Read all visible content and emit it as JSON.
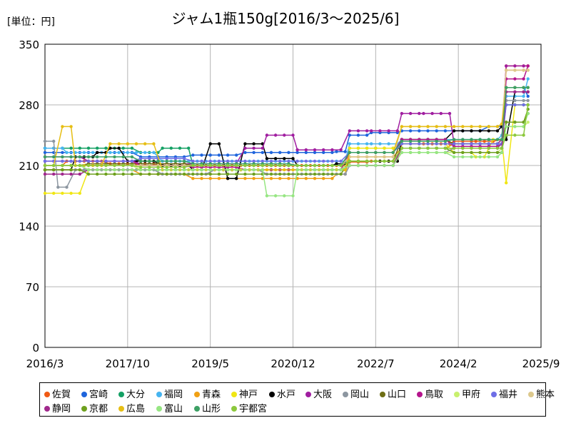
{
  "header": {
    "unit_label": "[単位：円]"
  },
  "chart_data": {
    "type": "line",
    "title": "ジャム1瓶150g[2016/3～2025/6]",
    "xlabel": "",
    "ylabel": "",
    "ylim": [
      0,
      350
    ],
    "yticks": [
      0,
      70,
      140,
      210,
      280,
      350
    ],
    "xlim": [
      "2016/3",
      "2025/9"
    ],
    "xticks": [
      "2016/3",
      "2017/10",
      "2019/5",
      "2020/12",
      "2022/7",
      "2024/2",
      "2025/9"
    ],
    "grid": true,
    "legend_position": "bottom",
    "series": [
      {
        "name": "佐賀",
        "color": "#f05a14",
        "points": [
          [
            "2016/3",
            210
          ],
          [
            "2016/8",
            215
          ],
          [
            "2017/6",
            212
          ],
          [
            "2018/6",
            210
          ],
          [
            "2019/6",
            210
          ],
          [
            "2020/6",
            210
          ],
          [
            "2021/6",
            210
          ],
          [
            "2022/1",
            214
          ],
          [
            "2022/6",
            215
          ],
          [
            "2023/1",
            235
          ],
          [
            "2023/6",
            235
          ],
          [
            "2024/1",
            238
          ],
          [
            "2024/6",
            238
          ],
          [
            "2024/12",
            240
          ],
          [
            "2025/1",
            325
          ],
          [
            "2025/6",
            325
          ]
        ]
      },
      {
        "name": "宮崎",
        "color": "#1e64dc",
        "points": [
          [
            "2016/3",
            225
          ],
          [
            "2017/1",
            225
          ],
          [
            "2018/1",
            220
          ],
          [
            "2019/1",
            222
          ],
          [
            "2020/1",
            225
          ],
          [
            "2021/1",
            225
          ],
          [
            "2021/10",
            226
          ],
          [
            "2022/1",
            245
          ],
          [
            "2022/6",
            248
          ],
          [
            "2023/1",
            250
          ],
          [
            "2024/1",
            250
          ],
          [
            "2024/9",
            255
          ],
          [
            "2024/12",
            255
          ],
          [
            "2025/1",
            300
          ],
          [
            "2025/6",
            290
          ]
        ]
      },
      {
        "name": "大分",
        "color": "#14a064",
        "points": [
          [
            "2016/3",
            230
          ],
          [
            "2017/1",
            230
          ],
          [
            "2018/1",
            225
          ],
          [
            "2018/6",
            230
          ],
          [
            "2019/1",
            210
          ],
          [
            "2020/1",
            210
          ],
          [
            "2021/1",
            210
          ],
          [
            "2021/10",
            212
          ],
          [
            "2022/1",
            230
          ],
          [
            "2023/1",
            230
          ],
          [
            "2024/1",
            235
          ],
          [
            "2024/12",
            240
          ],
          [
            "2025/1",
            280
          ],
          [
            "2025/6",
            280
          ]
        ]
      },
      {
        "name": "福岡",
        "color": "#46b4f0",
        "points": [
          [
            "2016/3",
            230
          ],
          [
            "2016/8",
            225
          ],
          [
            "2017/6",
            225
          ],
          [
            "2018/6",
            215
          ],
          [
            "2019/6",
            215
          ],
          [
            "2020/6",
            215
          ],
          [
            "2021/6",
            215
          ],
          [
            "2022/1",
            235
          ],
          [
            "2022/6",
            235
          ],
          [
            "2023/1",
            240
          ],
          [
            "2024/1",
            240
          ],
          [
            "2024/12",
            245
          ],
          [
            "2025/1",
            290
          ],
          [
            "2025/6",
            310
          ]
        ]
      },
      {
        "name": "青森",
        "color": "#f0a014",
        "points": [
          [
            "2016/3",
            205
          ],
          [
            "2017/1",
            205
          ],
          [
            "2018/1",
            200
          ],
          [
            "2019/1",
            195
          ],
          [
            "2020/1",
            195
          ],
          [
            "2021/1",
            195
          ],
          [
            "2021/10",
            200
          ],
          [
            "2022/1",
            220
          ],
          [
            "2023/1",
            230
          ],
          [
            "2024/1",
            235
          ],
          [
            "2024/12",
            240
          ],
          [
            "2025/1",
            320
          ],
          [
            "2025/6",
            320
          ]
        ]
      },
      {
        "name": "神戸",
        "color": "#f0e614",
        "points": [
          [
            "2016/3",
            178
          ],
          [
            "2016/11",
            178
          ],
          [
            "2017/1",
            205
          ],
          [
            "2018/1",
            205
          ],
          [
            "2019/1",
            205
          ],
          [
            "2020/1",
            205
          ],
          [
            "2021/1",
            205
          ],
          [
            "2021/10",
            205
          ],
          [
            "2022/1",
            230
          ],
          [
            "2023/1",
            235
          ],
          [
            "2024/1",
            225
          ],
          [
            "2024/6",
            220
          ],
          [
            "2024/10",
            240
          ],
          [
            "2025/1",
            190
          ],
          [
            "2025/3",
            280
          ],
          [
            "2025/6",
            280
          ]
        ]
      },
      {
        "name": "水戸",
        "color": "#000000",
        "points": [
          [
            "2016/3",
            205
          ],
          [
            "2016/10",
            220
          ],
          [
            "2017/3",
            225
          ],
          [
            "2017/6",
            230
          ],
          [
            "2017/10",
            215
          ],
          [
            "2018/6",
            210
          ],
          [
            "2019/1",
            205
          ],
          [
            "2019/5",
            235
          ],
          [
            "2019/9",
            195
          ],
          [
            "2020/1",
            235
          ],
          [
            "2020/6",
            218
          ],
          [
            "2021/1",
            210
          ],
          [
            "2021/10",
            212
          ],
          [
            "2022/1",
            215
          ],
          [
            "2022/8",
            215
          ],
          [
            "2023/1",
            240
          ],
          [
            "2024/1",
            250
          ],
          [
            "2024/12",
            255
          ],
          [
            "2025/1",
            240
          ],
          [
            "2025/3",
            295
          ],
          [
            "2025/6",
            295
          ]
        ]
      },
      {
        "name": "大阪",
        "color": "#a01ea0",
        "points": [
          [
            "2016/3",
            220
          ],
          [
            "2017/1",
            215
          ],
          [
            "2018/1",
            212
          ],
          [
            "2019/1",
            212
          ],
          [
            "2020/1",
            230
          ],
          [
            "2020/6",
            245
          ],
          [
            "2021/1",
            228
          ],
          [
            "2022/1",
            250
          ],
          [
            "2022/6",
            250
          ],
          [
            "2023/1",
            270
          ],
          [
            "2023/6",
            270
          ],
          [
            "2024/1",
            235
          ],
          [
            "2024/12",
            240
          ],
          [
            "2025/1",
            325
          ],
          [
            "2025/6",
            325
          ]
        ]
      },
      {
        "name": "岡山",
        "color": "#8c96a0",
        "points": [
          [
            "2016/3",
            238
          ],
          [
            "2016/6",
            185
          ],
          [
            "2016/10",
            205
          ],
          [
            "2017/6",
            205
          ],
          [
            "2018/6",
            200
          ],
          [
            "2019/6",
            205
          ],
          [
            "2020/6",
            200
          ],
          [
            "2021/6",
            200
          ],
          [
            "2022/1",
            210
          ],
          [
            "2023/1",
            225
          ],
          [
            "2024/1",
            230
          ],
          [
            "2024/12",
            235
          ],
          [
            "2025/1",
            285
          ],
          [
            "2025/6",
            285
          ]
        ]
      },
      {
        "name": "山口",
        "color": "#6e6e14",
        "points": [
          [
            "2016/3",
            210
          ],
          [
            "2017/1",
            212
          ],
          [
            "2018/1",
            212
          ],
          [
            "2019/1",
            210
          ],
          [
            "2020/1",
            210
          ],
          [
            "2021/1",
            210
          ],
          [
            "2022/1",
            215
          ],
          [
            "2023/1",
            240
          ],
          [
            "2024/1",
            235
          ],
          [
            "2024/12",
            235
          ],
          [
            "2025/1",
            260
          ],
          [
            "2025/6",
            270
          ]
        ]
      },
      {
        "name": "鳥取",
        "color": "#b4148c",
        "points": [
          [
            "2016/3",
            215
          ],
          [
            "2017/1",
            215
          ],
          [
            "2018/1",
            210
          ],
          [
            "2019/1",
            208
          ],
          [
            "2020/1",
            205
          ],
          [
            "2021/1",
            205
          ],
          [
            "2022/1",
            225
          ],
          [
            "2023/1",
            240
          ],
          [
            "2024/1",
            232
          ],
          [
            "2024/12",
            235
          ],
          [
            "2025/1",
            310
          ],
          [
            "2025/6",
            325
          ]
        ]
      },
      {
        "name": "甲府",
        "color": "#c8f06e",
        "points": [
          [
            "2016/3",
            210
          ],
          [
            "2017/1",
            210
          ],
          [
            "2018/1",
            205
          ],
          [
            "2019/1",
            205
          ],
          [
            "2020/1",
            205
          ],
          [
            "2021/1",
            205
          ],
          [
            "2022/1",
            215
          ],
          [
            "2023/1",
            225
          ],
          [
            "2024/1",
            225
          ],
          [
            "2024/12",
            230
          ],
          [
            "2025/1",
            255
          ],
          [
            "2025/6",
            260
          ]
        ]
      },
      {
        "name": "福井",
        "color": "#6e6ee6",
        "points": [
          [
            "2016/3",
            215
          ],
          [
            "2017/1",
            215
          ],
          [
            "2018/1",
            218
          ],
          [
            "2019/1",
            215
          ],
          [
            "2020/1",
            215
          ],
          [
            "2021/1",
            215
          ],
          [
            "2022/1",
            225
          ],
          [
            "2023/1",
            235
          ],
          [
            "2024/1",
            235
          ],
          [
            "2024/12",
            235
          ],
          [
            "2025/1",
            280
          ],
          [
            "2025/6",
            280
          ]
        ]
      },
      {
        "name": "熊本",
        "color": "#dcc88c",
        "points": [
          [
            "2016/3",
            210
          ],
          [
            "2017/1",
            210
          ],
          [
            "2018/1",
            210
          ],
          [
            "2019/1",
            210
          ],
          [
            "2020/1",
            210
          ],
          [
            "2021/1",
            210
          ],
          [
            "2022/1",
            220
          ],
          [
            "2023/1",
            255
          ],
          [
            "2024/1",
            255
          ],
          [
            "2024/12",
            258
          ],
          [
            "2025/1",
            320
          ],
          [
            "2025/6",
            320
          ]
        ]
      },
      {
        "name": "静岡",
        "color": "#a0288c",
        "points": [
          [
            "2016/3",
            200
          ],
          [
            "2017/1",
            205
          ],
          [
            "2018/1",
            205
          ],
          [
            "2019/1",
            205
          ],
          [
            "2020/1",
            205
          ],
          [
            "2021/1",
            205
          ],
          [
            "2022/1",
            210
          ],
          [
            "2023/1",
            230
          ],
          [
            "2024/1",
            230
          ],
          [
            "2024/12",
            230
          ],
          [
            "2025/1",
            295
          ],
          [
            "2025/6",
            295
          ]
        ]
      },
      {
        "name": "京都",
        "color": "#6ea01e",
        "points": [
          [
            "2016/3",
            205
          ],
          [
            "2017/1",
            200
          ],
          [
            "2018/1",
            200
          ],
          [
            "2019/1",
            200
          ],
          [
            "2020/1",
            200
          ],
          [
            "2021/1",
            200
          ],
          [
            "2022/1",
            215
          ],
          [
            "2023/1",
            230
          ],
          [
            "2024/1",
            225
          ],
          [
            "2024/12",
            225
          ],
          [
            "2025/1",
            260
          ],
          [
            "2025/6",
            275
          ]
        ]
      },
      {
        "name": "広島",
        "color": "#e6be14",
        "points": [
          [
            "2016/3",
            210
          ],
          [
            "2016/7",
            255
          ],
          [
            "2016/10",
            210
          ],
          [
            "2017/6",
            235
          ],
          [
            "2018/6",
            205
          ],
          [
            "2019/6",
            205
          ],
          [
            "2020/6",
            205
          ],
          [
            "2021/6",
            205
          ],
          [
            "2022/1",
            225
          ],
          [
            "2023/1",
            255
          ],
          [
            "2024/1",
            255
          ],
          [
            "2024/12",
            258
          ],
          [
            "2025/1",
            300
          ],
          [
            "2025/6",
            300
          ]
        ]
      },
      {
        "name": "富山",
        "color": "#96e682",
        "points": [
          [
            "2016/3",
            210
          ],
          [
            "2017/1",
            205
          ],
          [
            "2018/1",
            205
          ],
          [
            "2019/1",
            205
          ],
          [
            "2020/1",
            205
          ],
          [
            "2020/6",
            175
          ],
          [
            "2021/1",
            205
          ],
          [
            "2022/1",
            210
          ],
          [
            "2023/1",
            225
          ],
          [
            "2024/1",
            220
          ],
          [
            "2024/12",
            225
          ],
          [
            "2025/1",
            255
          ],
          [
            "2025/6",
            270
          ]
        ]
      },
      {
        "name": "山形",
        "color": "#3ca064",
        "points": [
          [
            "2016/3",
            220
          ],
          [
            "2017/1",
            220
          ],
          [
            "2018/1",
            215
          ],
          [
            "2019/1",
            212
          ],
          [
            "2020/1",
            212
          ],
          [
            "2021/1",
            210
          ],
          [
            "2022/1",
            225
          ],
          [
            "2023/1",
            238
          ],
          [
            "2024/1",
            240
          ],
          [
            "2024/12",
            240
          ],
          [
            "2025/1",
            300
          ],
          [
            "2025/6",
            300
          ]
        ]
      },
      {
        "name": "宇都宮",
        "color": "#8cc83c",
        "points": [
          [
            "2016/3",
            210
          ],
          [
            "2017/1",
            210
          ],
          [
            "2018/1",
            208
          ],
          [
            "2019/1",
            210
          ],
          [
            "2020/1",
            210
          ],
          [
            "2021/1",
            210
          ],
          [
            "2022/1",
            215
          ],
          [
            "2023/1",
            230
          ],
          [
            "2024/1",
            230
          ],
          [
            "2024/12",
            230
          ],
          [
            "2025/1",
            245
          ],
          [
            "2025/6",
            280
          ]
        ]
      }
    ]
  }
}
